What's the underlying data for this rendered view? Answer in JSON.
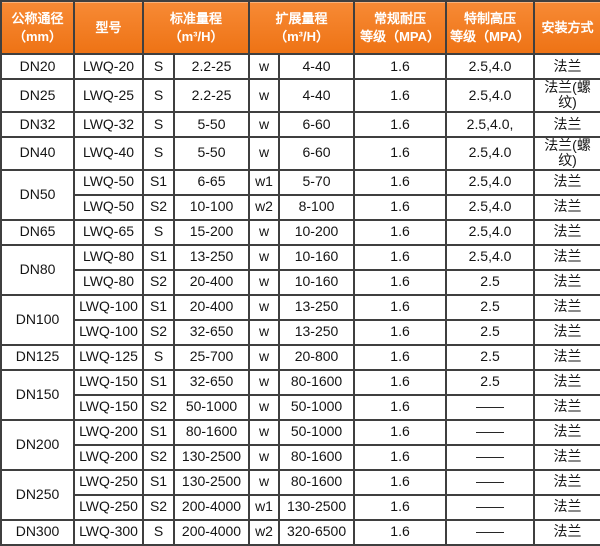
{
  "colors": {
    "header_bg": "#ef7719",
    "header_bg_light": "#f78a35",
    "header_bg_dark": "#ee7315",
    "header_text": "#ffffff",
    "grid_line": "#3f3f3f",
    "body_bg": "#ffffff",
    "body_text": "#141414"
  },
  "table": {
    "headers": [
      {
        "name": "col-header-nominal-diameter",
        "lines": [
          "公称通径",
          "（mm）"
        ],
        "colspan": 1
      },
      {
        "name": "col-header-model",
        "lines": [
          "型号"
        ],
        "colspan": 1
      },
      {
        "name": "col-header-standard-range",
        "lines": [
          "标准量程",
          "（m³/H）"
        ],
        "colspan": 2
      },
      {
        "name": "col-header-extended-range",
        "lines": [
          "扩展量程",
          "（m³/H）"
        ],
        "colspan": 2
      },
      {
        "name": "col-header-normal-pressure",
        "lines": [
          "常规耐压",
          "等级（MPA）"
        ],
        "colspan": 1
      },
      {
        "name": "col-header-high-pressure",
        "lines": [
          "特制高压",
          "等级（MPA）"
        ],
        "colspan": 1
      },
      {
        "name": "col-header-installation",
        "lines": [
          "安装方式"
        ],
        "colspan": 1
      }
    ],
    "rows": [
      {
        "dn": "DN20",
        "dn_span": 1,
        "model": "LWQ-20",
        "std_code": "S",
        "std_range": "2.2-25",
        "ext_code": "w",
        "ext_range": "4-40",
        "normal_mpa": "1.6",
        "high_mpa": "2.5,4.0",
        "install": "法兰"
      },
      {
        "dn": "DN25",
        "dn_span": 1,
        "model": "LWQ-25",
        "std_code": "S",
        "std_range": "2.2-25",
        "ext_code": "w",
        "ext_range": "4-40",
        "normal_mpa": "1.6",
        "high_mpa": "2.5,4.0",
        "install": "法兰(螺纹)"
      },
      {
        "dn": "DN32",
        "dn_span": 1,
        "model": "LWQ-32",
        "std_code": "S",
        "std_range": "5-50",
        "ext_code": "w",
        "ext_range": "6-60",
        "normal_mpa": "1.6",
        "high_mpa": "2.5,4.0,",
        "install": "法兰"
      },
      {
        "dn": "DN40",
        "dn_span": 1,
        "model": "LWQ-40",
        "std_code": "S",
        "std_range": "5-50",
        "ext_code": "w",
        "ext_range": "6-60",
        "normal_mpa": "1.6",
        "high_mpa": "2.5,4.0",
        "install": "法兰(螺纹)"
      },
      {
        "dn": "DN50",
        "dn_span": 2,
        "model": "LWQ-50",
        "std_code": "S1",
        "std_range": "6-65",
        "ext_code": "w1",
        "ext_range": "5-70",
        "normal_mpa": "1.6",
        "high_mpa": "2.5,4.0",
        "install": "法兰"
      },
      {
        "dn": null,
        "dn_span": 0,
        "model": "LWQ-50",
        "std_code": "S2",
        "std_range": "10-100",
        "ext_code": "w2",
        "ext_range": "8-100",
        "normal_mpa": "1.6",
        "high_mpa": "2.5,4.0",
        "install": "法兰"
      },
      {
        "dn": "DN65",
        "dn_span": 1,
        "model": "LWQ-65",
        "std_code": "S",
        "std_range": "15-200",
        "ext_code": "w",
        "ext_range": "10-200",
        "normal_mpa": "1.6",
        "high_mpa": "2.5,4.0",
        "install": "法兰"
      },
      {
        "dn": "DN80",
        "dn_span": 2,
        "model": "LWQ-80",
        "std_code": "S1",
        "std_range": "13-250",
        "ext_code": "w",
        "ext_range": "10-160",
        "normal_mpa": "1.6",
        "high_mpa": "2.5,4.0",
        "install": "法兰"
      },
      {
        "dn": null,
        "dn_span": 0,
        "model": "LWQ-80",
        "std_code": "S2",
        "std_range": "20-400",
        "ext_code": "w",
        "ext_range": "10-160",
        "normal_mpa": "1.6",
        "high_mpa": "2.5",
        "install": "法兰"
      },
      {
        "dn": "DN100",
        "dn_span": 2,
        "model": "LWQ-100",
        "std_code": "S1",
        "std_range": "20-400",
        "ext_code": "w",
        "ext_range": "13-250",
        "normal_mpa": "1.6",
        "high_mpa": "2.5",
        "install": "法兰"
      },
      {
        "dn": null,
        "dn_span": 0,
        "model": "LWQ-100",
        "std_code": "S2",
        "std_range": "32-650",
        "ext_code": "w",
        "ext_range": "13-250",
        "normal_mpa": "1.6",
        "high_mpa": "2.5",
        "install": "法兰"
      },
      {
        "dn": "DN125",
        "dn_span": 1,
        "model": "LWQ-125",
        "std_code": "S",
        "std_range": "25-700",
        "ext_code": "w",
        "ext_range": "20-800",
        "normal_mpa": "1.6",
        "high_mpa": "2.5",
        "install": "法兰"
      },
      {
        "dn": "DN150",
        "dn_span": 2,
        "model": "LWQ-150",
        "std_code": "S1",
        "std_range": "32-650",
        "ext_code": "w",
        "ext_range": "80-1600",
        "normal_mpa": "1.6",
        "high_mpa": "2.5",
        "install": "法兰"
      },
      {
        "dn": null,
        "dn_span": 0,
        "model": "LWQ-150",
        "std_code": "S2",
        "std_range": "50-1000",
        "ext_code": "w",
        "ext_range": "50-1000",
        "normal_mpa": "1.6",
        "high_mpa": "——",
        "install": "法兰"
      },
      {
        "dn": "DN200",
        "dn_span": 2,
        "model": "LWQ-200",
        "std_code": "S1",
        "std_range": "80-1600",
        "ext_code": "w",
        "ext_range": "50-1000",
        "normal_mpa": "1.6",
        "high_mpa": "——",
        "install": "法兰"
      },
      {
        "dn": null,
        "dn_span": 0,
        "model": "LWQ-200",
        "std_code": "S2",
        "std_range": "130-2500",
        "ext_code": "w",
        "ext_range": "80-1600",
        "normal_mpa": "1.6",
        "high_mpa": "——",
        "install": "法兰"
      },
      {
        "dn": "DN250",
        "dn_span": 2,
        "model": "LWQ-250",
        "std_code": "S1",
        "std_range": "130-2500",
        "ext_code": "w",
        "ext_range": "80-1600",
        "normal_mpa": "1.6",
        "high_mpa": "——",
        "install": "法兰"
      },
      {
        "dn": null,
        "dn_span": 0,
        "model": "LWQ-250",
        "std_code": "S2",
        "std_range": "200-4000",
        "ext_code": "w1",
        "ext_range": "130-2500",
        "normal_mpa": "1.6",
        "high_mpa": "——",
        "install": "法兰"
      },
      {
        "dn": "DN300",
        "dn_span": 1,
        "model": "LWQ-300",
        "std_code": "S",
        "std_range": "200-4000",
        "ext_code": "w2",
        "ext_range": "320-6500",
        "normal_mpa": "1.6",
        "high_mpa": "——",
        "install": "法兰"
      }
    ]
  }
}
